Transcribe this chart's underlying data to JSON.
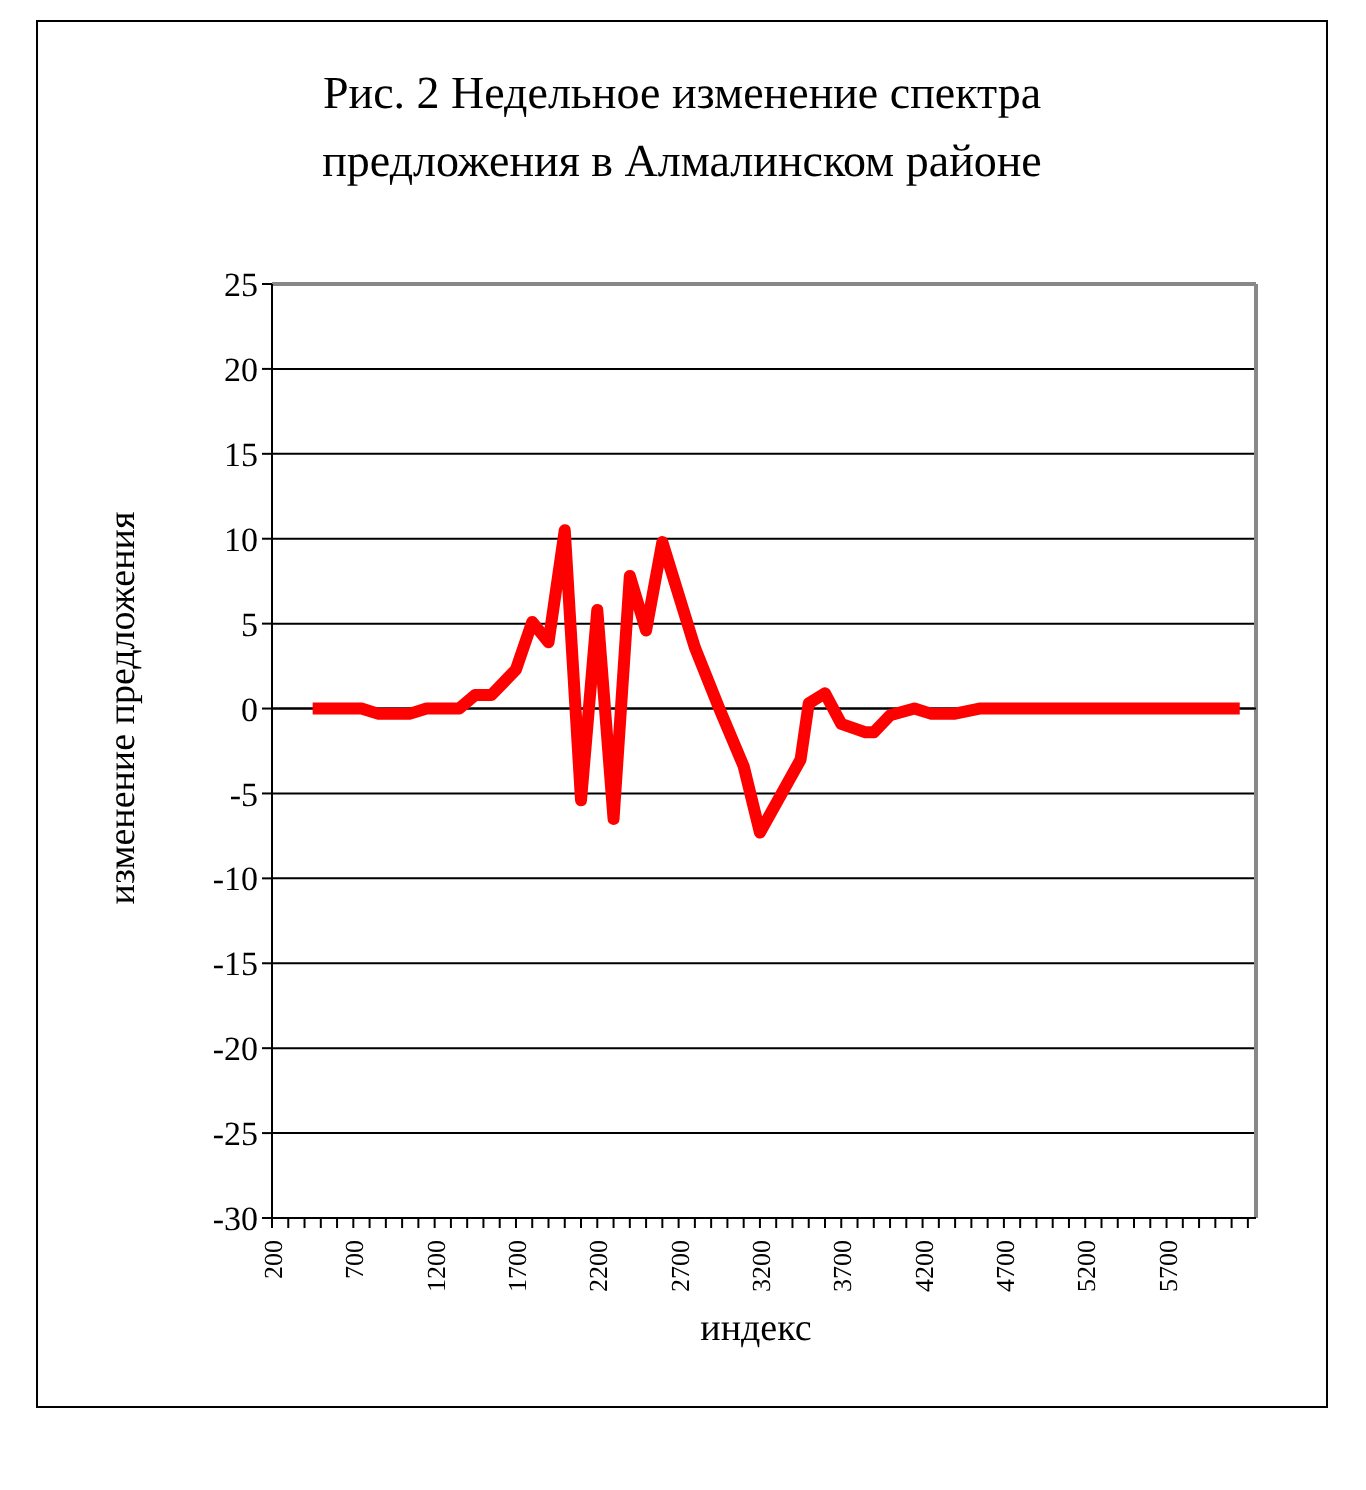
{
  "chart_data": {
    "type": "line",
    "title": "Рис. 2 Недельное изменение спектра предложения в Алмалинском районе",
    "xlabel": "индекс",
    "ylabel": "изменение предложения",
    "x": [
      450,
      750,
      850,
      1050,
      1150,
      1350,
      1450,
      1550,
      1700,
      1800,
      1900,
      2000,
      2100,
      2200,
      2300,
      2400,
      2500,
      2600,
      2800,
      2950,
      3100,
      3200,
      3450,
      3500,
      3600,
      3700,
      3850,
      3900,
      4000,
      4150,
      4250,
      4400,
      4550,
      6150
    ],
    "series": [
      {
        "color": "#ff0000",
        "values": [
          0,
          0,
          -0.3,
          -0.3,
          0,
          0,
          0.8,
          0.8,
          2.3,
          5.1,
          3.9,
          10.5,
          -5.4,
          5.8,
          -6.5,
          7.8,
          4.6,
          9.8,
          3.6,
          0,
          -3.4,
          -7.3,
          -3,
          0.3,
          0.9,
          -0.9,
          -1.4,
          -1.4,
          -0.4,
          0,
          -0.3,
          -0.3,
          0,
          0
        ]
      }
    ],
    "xlim": [
      200,
      6250
    ],
    "xticks": [
      200,
      {
        "value": 300,
        "label": null
      },
      {
        "value": 400,
        "label": null
      },
      {
        "value": 500,
        "label": null
      },
      {
        "value": 600,
        "label": null
      },
      700,
      {
        "value": 800,
        "label": null
      },
      {
        "value": 900,
        "label": null
      },
      {
        "value": 1000,
        "label": null
      },
      {
        "value": 1100,
        "label": null
      },
      1200,
      {
        "value": 1300,
        "label": null
      },
      {
        "value": 1400,
        "label": null
      },
      {
        "value": 1500,
        "label": null
      },
      {
        "value": 1600,
        "label": null
      },
      1700,
      {
        "value": 1800,
        "label": null
      },
      {
        "value": 1900,
        "label": null
      },
      {
        "value": 2000,
        "label": null
      },
      {
        "value": 2100,
        "label": null
      },
      2200,
      {
        "value": 2300,
        "label": null
      },
      {
        "value": 2400,
        "label": null
      },
      {
        "value": 2500,
        "label": null
      },
      {
        "value": 2600,
        "label": null
      },
      2700,
      {
        "value": 2800,
        "label": null
      },
      {
        "value": 2900,
        "label": null
      },
      {
        "value": 3000,
        "label": null
      },
      {
        "value": 3100,
        "label": null
      },
      3200,
      {
        "value": 3300,
        "label": null
      },
      {
        "value": 3400,
        "label": null
      },
      {
        "value": 3500,
        "label": null
      },
      {
        "value": 3600,
        "label": null
      },
      3700,
      {
        "value": 3800,
        "label": null
      },
      {
        "value": 3900,
        "label": null
      },
      {
        "value": 4000,
        "label": null
      },
      {
        "value": 4100,
        "label": null
      },
      4200,
      {
        "value": 4300,
        "label": null
      },
      {
        "value": 4400,
        "label": null
      },
      {
        "value": 4500,
        "label": null
      },
      {
        "value": 4600,
        "label": null
      },
      4700,
      {
        "value": 4800,
        "label": null
      },
      {
        "value": 4900,
        "label": null
      },
      {
        "value": 5000,
        "label": null
      },
      {
        "value": 5100,
        "label": null
      },
      5200,
      {
        "value": 5300,
        "label": null
      },
      {
        "value": 5400,
        "label": null
      },
      {
        "value": 5500,
        "label": null
      },
      {
        "value": 5600,
        "label": null
      },
      5700,
      {
        "value": 5800,
        "label": null
      },
      {
        "value": 5900,
        "label": null
      },
      {
        "value": 6000,
        "label": null
      },
      {
        "value": 6100,
        "label": null
      },
      {
        "value": 6200,
        "label": null
      }
    ],
    "ylim": [
      -30,
      25
    ],
    "yticks": [
      -30,
      -25,
      -20,
      -15,
      -10,
      -5,
      0,
      5,
      10,
      15,
      20,
      25
    ],
    "grid": "y",
    "legend": false,
    "marker": "none",
    "line_style": "solid"
  }
}
